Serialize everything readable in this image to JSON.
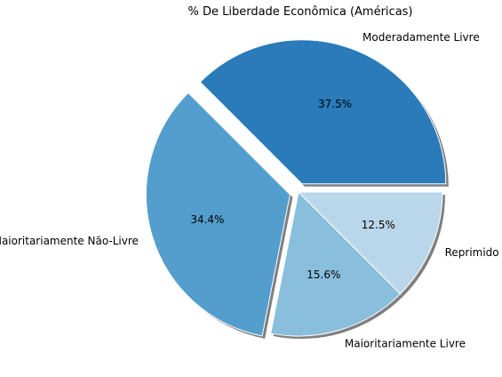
{
  "chart_data": {
    "type": "pie",
    "title": "% De Liberdade Econômica (Américas)",
    "slices": [
      {
        "label": "Moderadamente Livre",
        "value": 37.5,
        "pct_label": "37.5%",
        "color": "#2b7bba",
        "exploded": true
      },
      {
        "label": "Maioritariamente Não-Livre",
        "value": 34.4,
        "pct_label": "34.4%",
        "color": "#539ecd",
        "exploded": true
      },
      {
        "label": "Maioritariamente Livre",
        "value": 15.6,
        "pct_label": "15.6%",
        "color": "#89bedc",
        "exploded": false
      },
      {
        "label": "Reprimido",
        "value": 12.5,
        "pct_label": "12.5%",
        "color": "#bad6eb",
        "exploded": false
      }
    ],
    "shadow": true,
    "start_angle_deg": 0,
    "direction": "counterclockwise"
  }
}
